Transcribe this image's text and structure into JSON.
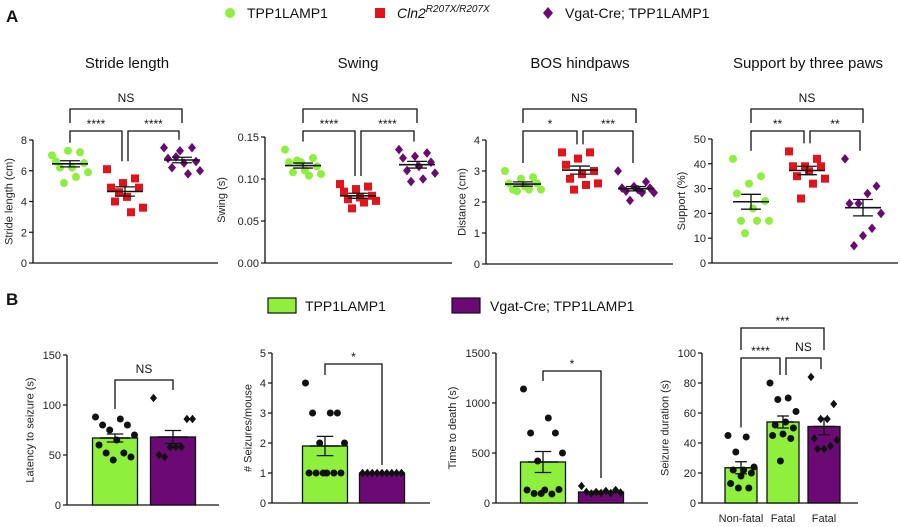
{
  "panels": {
    "a": "A",
    "b": "B"
  },
  "legend_a": [
    {
      "label": "TPP1LAMP1",
      "marker": "circle",
      "color": "#8ef03c"
    },
    {
      "label": "Cln2",
      "superscript": "R207X/R207X",
      "marker": "square",
      "color": "#e3131b"
    },
    {
      "label": "Vgat-Cre; TPP1LAMP1",
      "marker": "diamond",
      "color": "#6b0a74"
    }
  ],
  "legend_b": [
    {
      "label": "TPP1LAMP1",
      "color": "#8ef03c"
    },
    {
      "label": "Vgat-Cre; TPP1LAMP1",
      "color": "#6b0a74"
    }
  ],
  "chart_data": [
    {
      "type": "scatter",
      "title": "Stride length",
      "ylabel": "Stride length (cm)",
      "ylim": [
        0,
        8
      ],
      "ticks": [
        "0",
        "2",
        "4",
        "6",
        "8"
      ],
      "groups": [
        {
          "color": "#8ef03c",
          "marker": "circle",
          "mean": 6.45,
          "sem": 0.2,
          "values": [
            7.0,
            7.2,
            7.3,
            6.6,
            6.5,
            6.2,
            6.2,
            5.9,
            5.6,
            5.2
          ]
        },
        {
          "color": "#e3131b",
          "marker": "square",
          "mean": 4.65,
          "sem": 0.3,
          "values": [
            6.1,
            5.5,
            5.2,
            4.9,
            4.9,
            4.3,
            4.0,
            3.6,
            3.3,
            4.6
          ]
        },
        {
          "color": "#6b0a74",
          "marker": "diamond",
          "mean": 6.7,
          "sem": 0.18,
          "values": [
            7.5,
            7.5,
            7.3,
            6.8,
            6.6,
            6.5,
            6.2,
            6.0,
            5.8,
            6.9
          ]
        }
      ],
      "comparisons": [
        {
          "groups": [
            0,
            1
          ],
          "label": "****"
        },
        {
          "groups": [
            1,
            2
          ],
          "label": "****"
        },
        {
          "groups": [
            0,
            2
          ],
          "label": "NS"
        }
      ]
    },
    {
      "type": "scatter",
      "title": "Swing",
      "ylabel": "Swing (s)",
      "ylim": [
        0,
        0.15
      ],
      "ticks": [
        "0.00",
        "0.05",
        "0.10",
        "0.15"
      ],
      "groups": [
        {
          "color": "#8ef03c",
          "marker": "circle",
          "mean": 0.116,
          "sem": 0.003,
          "values": [
            0.135,
            0.125,
            0.12,
            0.12,
            0.115,
            0.11,
            0.108,
            0.106,
            0.104,
            0.122
          ]
        },
        {
          "color": "#e3131b",
          "marker": "square",
          "mean": 0.08,
          "sem": 0.003,
          "values": [
            0.094,
            0.091,
            0.088,
            0.085,
            0.08,
            0.078,
            0.076,
            0.074,
            0.072,
            0.065
          ]
        },
        {
          "color": "#6b0a74",
          "marker": "diamond",
          "mean": 0.117,
          "sem": 0.004,
          "values": [
            0.135,
            0.131,
            0.127,
            0.125,
            0.12,
            0.115,
            0.11,
            0.107,
            0.1,
            0.097
          ]
        }
      ],
      "comparisons": [
        {
          "groups": [
            0,
            1
          ],
          "label": "****"
        },
        {
          "groups": [
            1,
            2
          ],
          "label": "****"
        },
        {
          "groups": [
            0,
            2
          ],
          "label": "NS"
        }
      ]
    },
    {
      "type": "scatter",
      "title": "BOS hindpaws",
      "ylabel": "Distance (cm)",
      "ylim": [
        0,
        4
      ],
      "ticks": [
        "0",
        "1",
        "2",
        "3",
        "4"
      ],
      "groups": [
        {
          "color": "#8ef03c",
          "marker": "circle",
          "mean": 2.58,
          "sem": 0.07,
          "values": [
            3.0,
            2.8,
            2.75,
            2.6,
            2.6,
            2.5,
            2.4,
            2.4,
            2.4,
            2.35
          ]
        },
        {
          "color": "#e3131b",
          "marker": "square",
          "mean": 3.03,
          "sem": 0.13,
          "values": [
            3.6,
            3.6,
            3.4,
            3.2,
            3.0,
            2.9,
            2.75,
            2.6,
            2.55,
            2.4
          ]
        },
        {
          "color": "#6b0a74",
          "marker": "diamond",
          "mean": 2.43,
          "sem": 0.07,
          "values": [
            3.0,
            2.65,
            2.5,
            2.45,
            2.45,
            2.4,
            2.35,
            2.3,
            2.3,
            2.05
          ]
        }
      ],
      "comparisons": [
        {
          "groups": [
            0,
            1
          ],
          "label": "*"
        },
        {
          "groups": [
            1,
            2
          ],
          "label": "***"
        },
        {
          "groups": [
            0,
            2
          ],
          "label": "NS"
        }
      ]
    },
    {
      "type": "scatter",
      "title": "Support by three paws",
      "ylabel": "Support (%)",
      "ylim": [
        0,
        50
      ],
      "ticks": [
        "0",
        "10",
        "20",
        "30",
        "40",
        "50"
      ],
      "groups": [
        {
          "color": "#8ef03c",
          "marker": "circle",
          "mean": 24.7,
          "sem": 3.0,
          "values": [
            42,
            35,
            32,
            28,
            25,
            22,
            17,
            17,
            17,
            12
          ]
        },
        {
          "color": "#e3131b",
          "marker": "square",
          "mean": 37.3,
          "sem": 1.7,
          "values": [
            45,
            42,
            39,
            39,
            39,
            37,
            35,
            34,
            32,
            26
          ]
        },
        {
          "color": "#6b0a74",
          "marker": "diamond",
          "mean": 22.3,
          "sem": 3.3,
          "values": [
            42,
            31,
            28,
            24,
            24,
            20,
            14,
            11,
            7
          ]
        }
      ],
      "comparisons": [
        {
          "groups": [
            0,
            1
          ],
          "label": "**"
        },
        {
          "groups": [
            1,
            2
          ],
          "label": "**"
        },
        {
          "groups": [
            0,
            2
          ],
          "label": "NS"
        }
      ]
    },
    {
      "type": "bar",
      "ylabel": "Latency to seizure (s)",
      "ylim": [
        0,
        150
      ],
      "ticks": [
        "0",
        "50",
        "100",
        "150"
      ],
      "groups": [
        {
          "color": "#8ef03c",
          "marker": "circle",
          "mean": 67,
          "sem": 4,
          "values": [
            88,
            86,
            80,
            80,
            75,
            70,
            65,
            60,
            52,
            52,
            48,
            45
          ]
        },
        {
          "color": "#6b0a74",
          "marker": "diamond",
          "mean": 68,
          "sem": 6.5,
          "values": [
            107,
            86,
            86,
            58,
            58,
            58,
            48,
            50
          ]
        }
      ],
      "comparisons": [
        {
          "groups": [
            0,
            1
          ],
          "label": "NS"
        }
      ]
    },
    {
      "type": "bar",
      "ylabel": "# Seizures/mouse",
      "ylim": [
        0,
        5
      ],
      "ticks": [
        "0",
        "1",
        "2",
        "3",
        "4",
        "5"
      ],
      "groups": [
        {
          "color": "#8ef03c",
          "marker": "circle",
          "mean": 1.9,
          "sem": 0.32,
          "values": [
            4,
            3,
            3,
            3,
            2,
            2,
            1,
            1,
            1,
            1,
            1,
            1
          ]
        },
        {
          "color": "#6b0a74",
          "marker": "diamond",
          "mean": 1.0,
          "sem": 0,
          "values": [
            1,
            1,
            1,
            1,
            1,
            1,
            1,
            1,
            1
          ]
        }
      ],
      "comparisons": [
        {
          "groups": [
            0,
            1
          ],
          "label": "*"
        }
      ]
    },
    {
      "type": "bar",
      "ylabel": "Time to death (s)",
      "ylim": [
        0,
        1500
      ],
      "ticks": [
        "0",
        "500",
        "1000",
        "1500"
      ],
      "groups": [
        {
          "color": "#8ef03c",
          "marker": "circle",
          "mean": 410,
          "sem": 105,
          "values": [
            1140,
            850,
            700,
            700,
            420,
            500,
            130,
            130,
            90,
            95,
            135,
            95
          ]
        },
        {
          "color": "#6b0a74",
          "marker": "diamond",
          "mean": 110,
          "sem": 8,
          "values": [
            170,
            130,
            120,
            110,
            110,
            105,
            100,
            100,
            95
          ]
        }
      ],
      "comparisons": [
        {
          "groups": [
            0,
            1
          ],
          "label": "*"
        }
      ]
    },
    {
      "type": "bar",
      "ylabel": "Seizure duration (s)",
      "ylim": [
        0,
        100
      ],
      "ticks": [
        "0",
        "20",
        "40",
        "60",
        "80",
        "100"
      ],
      "categories": [
        "Non-fatal",
        "Fatal",
        "Fatal"
      ],
      "groups": [
        {
          "color": "#8ef03c",
          "marker": "circle",
          "mean": 23.5,
          "sem": 4,
          "values": [
            45,
            44,
            34,
            24,
            22,
            22,
            20,
            18,
            13,
            10,
            10
          ]
        },
        {
          "color": "#8ef03c",
          "marker": "circle",
          "mean": 54,
          "sem": 4,
          "values": [
            80,
            70,
            69,
            61,
            54,
            52,
            50,
            46,
            45,
            43,
            28
          ]
        },
        {
          "color": "#6b0a74",
          "marker": "diamond",
          "mean": 51,
          "sem": 5.5,
          "values": [
            84,
            66,
            56,
            56,
            43,
            42,
            38,
            36,
            36
          ]
        }
      ],
      "comparisons": [
        {
          "groups": [
            0,
            1
          ],
          "label": "****"
        },
        {
          "groups": [
            1,
            2
          ],
          "label": "NS"
        },
        {
          "groups": [
            0,
            2
          ],
          "label": "***"
        }
      ]
    }
  ]
}
